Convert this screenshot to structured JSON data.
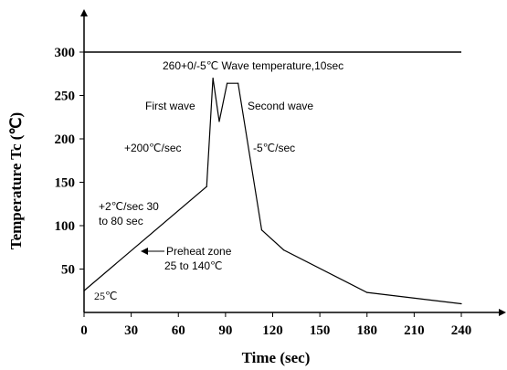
{
  "chart_data": {
    "type": "line",
    "title": "",
    "xlabel": "Time (sec)",
    "ylabel": "Temperature Tc (℃)",
    "xlim": [
      0,
      240
    ],
    "ylim": [
      0,
      300
    ],
    "x_ticks": [
      "0",
      "30",
      "60",
      "90",
      "120",
      "150",
      "180",
      "210",
      "240"
    ],
    "y_ticks": [
      "50",
      "100",
      "150",
      "200",
      "250",
      "300"
    ],
    "grid": false,
    "series": [
      {
        "x": [
          0,
          78,
          82,
          86,
          91,
          98,
          113,
          127,
          180,
          240
        ],
        "y": [
          25,
          145,
          270,
          220,
          264,
          264,
          95,
          72,
          23,
          10
        ]
      }
    ],
    "reference_lines": [
      {
        "orientation": "horizontal",
        "y": 300
      }
    ],
    "annotations": {
      "peak_label": "260+0/-5℃ Wave temperature,10sec",
      "first_wave": "First wave",
      "second_wave": "Second wave",
      "ramp_fast": "+200℃/sec",
      "cool_rate": "-5℃/sec",
      "ramp_slow_line1": "+2℃/sec 30",
      "ramp_slow_line2": "to 80 sec",
      "preheat_line1": "Preheat zone",
      "preheat_line2": "25 to 140℃",
      "start_temp": "25℃"
    }
  }
}
